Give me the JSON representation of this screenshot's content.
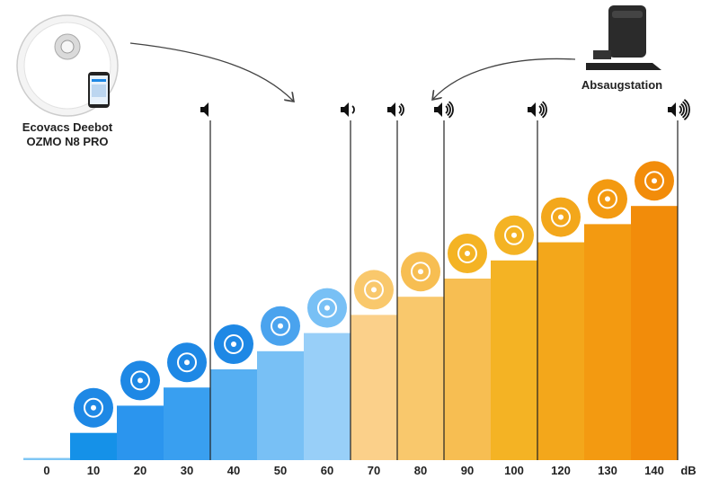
{
  "chart_data": {
    "type": "bar",
    "categories": [
      "0",
      "10",
      "20",
      "30",
      "40",
      "50",
      "60",
      "70",
      "80",
      "90",
      "100",
      "120",
      "130",
      "140"
    ],
    "values": [
      0,
      15,
      30,
      40,
      50,
      60,
      70,
      80,
      90,
      100,
      110,
      120,
      130,
      140
    ],
    "unit_label": "dB",
    "ylim": [
      0,
      150
    ],
    "grid": false,
    "colors": [
      "#7ec6f5",
      "#1591e8",
      "#2b95ee",
      "#399ff0",
      "#56aff2",
      "#78c0f5",
      "#98cff8",
      "#fbd08a",
      "#f9c86c",
      "#f7be52",
      "#f4b324",
      "#f3a71b",
      "#f39a11",
      "#f28c0a"
    ],
    "icon_colors": [
      "#1e88e5",
      "#1e88e5",
      "#1e88e5",
      "#1e88e5",
      "#4aa3ee",
      "#78c0f5",
      "#f9c86c",
      "#f7be52",
      "#f4b324",
      "#f4b324",
      "#f3a71b",
      "#f39a11",
      "#f28c0a"
    ],
    "icons": [
      "lungs-icon",
      "leaves-icon",
      "whisper-icon",
      "refrigerator-icon",
      "rain-icon",
      "speech-bubbles-icon",
      "washing-machine-icon",
      "piano-icon",
      "hairdryer-icon",
      "coffee-machine-icon",
      "trombone-icon",
      "police-car-icon",
      "fireworks-icon"
    ],
    "speaker_markers": [
      {
        "category": "30",
        "waves": 0
      },
      {
        "category": "60",
        "waves": 1
      },
      {
        "category": "70",
        "waves": 2
      },
      {
        "category": "80",
        "waves": 3
      },
      {
        "category": "100",
        "waves": 3
      },
      {
        "category": "140",
        "waves": 4
      }
    ]
  },
  "annotations": {
    "robot_label_line1": "Ecovacs Deebot",
    "robot_label_line2": "OZMO N8 PRO",
    "station_label": "Absaugstation"
  }
}
